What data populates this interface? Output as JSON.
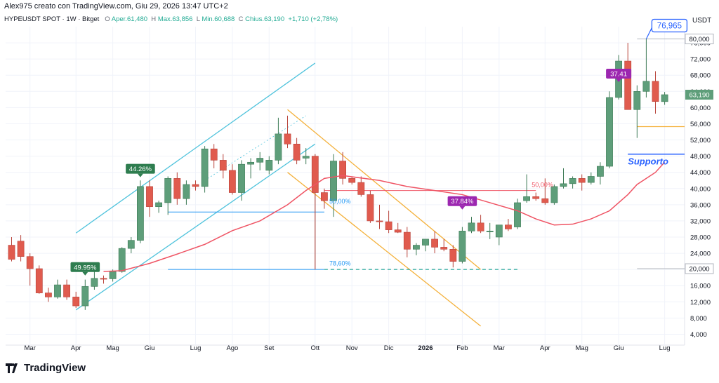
{
  "header": {
    "credit": "Alex975 creato con TradingView.com, Giu 29, 2026 13:47 UTC+2",
    "symbol": "HYPEUSDT SPOT · 1W · Bitget",
    "open_label": "O",
    "open": "Aper.61,480",
    "high_label": "H",
    "high": "Max.63,856",
    "low_label": "L",
    "low": "Min.60,688",
    "close_label": "C",
    "close": "Chius.63,190",
    "change": "+1,710 (+2,78%)",
    "currency": "USDT"
  },
  "brand": {
    "name": "TradingView"
  },
  "colors": {
    "up": "#5e9e7a",
    "down": "#e05b4e",
    "ma": "#ef5464",
    "channel_up": "#4fc3dc",
    "channel_down": "#f4b13b",
    "support": "#2962ff",
    "fib": "#2196f3",
    "purple": "#9c27b0",
    "green_badge": "#2e7d4f",
    "price_tag": "#5e9e7a",
    "grid": "#f0f3fa"
  },
  "chart_data": {
    "type": "candlestick",
    "interval": "1W",
    "ylim": [
      2000,
      80000
    ],
    "y_ticks": [
      4000,
      8000,
      12000,
      16000,
      20000,
      24000,
      28000,
      32000,
      36000,
      40000,
      44000,
      48000,
      52000,
      56000,
      60000,
      64000,
      68000,
      72000,
      76000
    ],
    "y_tick_labels": [
      "4,000",
      "8,000",
      "12,000",
      "16,000",
      "20,000",
      "24,000",
      "28,000",
      "32,000",
      "36,000",
      "40,000",
      "44,000",
      "48,000",
      "52,000",
      "56,000",
      "60,000",
      "64,000",
      "68,000",
      "72,000",
      "76,000"
    ],
    "x_ticks": [
      "Mar",
      "Apr",
      "Mag",
      "Giu",
      "Lug",
      "Ago",
      "Set",
      "Ott",
      "Nov",
      "Dic",
      "2026",
      "Feb",
      "Mar",
      "Apr",
      "Mag",
      "Giu",
      "Lug"
    ],
    "candles": [
      {
        "o": 26000,
        "h": 28000,
        "l": 22000,
        "c": 22500
      },
      {
        "o": 27000,
        "h": 28500,
        "l": 22000,
        "c": 23200
      },
      {
        "o": 23200,
        "h": 24000,
        "l": 16000,
        "c": 20200
      },
      {
        "o": 20200,
        "h": 21000,
        "l": 14000,
        "c": 14200
      },
      {
        "o": 14200,
        "h": 15500,
        "l": 12000,
        "c": 13200
      },
      {
        "o": 13200,
        "h": 17500,
        "l": 12800,
        "c": 16200
      },
      {
        "o": 16200,
        "h": 17500,
        "l": 12500,
        "c": 13200
      },
      {
        "o": 13200,
        "h": 14500,
        "l": 10500,
        "c": 11000
      },
      {
        "o": 11000,
        "h": 17500,
        "l": 10000,
        "c": 15800
      },
      {
        "o": 15800,
        "h": 19500,
        "l": 15000,
        "c": 17800
      },
      {
        "o": 17800,
        "h": 18500,
        "l": 16500,
        "c": 17700
      },
      {
        "o": 17700,
        "h": 20000,
        "l": 17000,
        "c": 19500
      },
      {
        "o": 19500,
        "h": 25500,
        "l": 19200,
        "c": 25200
      },
      {
        "o": 25200,
        "h": 28000,
        "l": 24000,
        "c": 27200
      },
      {
        "o": 27200,
        "h": 42000,
        "l": 26500,
        "c": 40500
      },
      {
        "o": 40500,
        "h": 42000,
        "l": 33000,
        "c": 35500
      },
      {
        "o": 35500,
        "h": 37000,
        "l": 34000,
        "c": 36500
      },
      {
        "o": 36500,
        "h": 43000,
        "l": 33500,
        "c": 42500
      },
      {
        "o": 42500,
        "h": 44000,
        "l": 36000,
        "c": 37500
      },
      {
        "o": 37500,
        "h": 42000,
        "l": 36000,
        "c": 41000
      },
      {
        "o": 41000,
        "h": 42000,
        "l": 39500,
        "c": 40500
      },
      {
        "o": 40500,
        "h": 50500,
        "l": 39000,
        "c": 49800
      },
      {
        "o": 49800,
        "h": 51000,
        "l": 45000,
        "c": 47000
      },
      {
        "o": 47000,
        "h": 48500,
        "l": 42500,
        "c": 44500
      },
      {
        "o": 44500,
        "h": 46000,
        "l": 38500,
        "c": 39000
      },
      {
        "o": 39000,
        "h": 47000,
        "l": 37000,
        "c": 46000
      },
      {
        "o": 46000,
        "h": 47500,
        "l": 42500,
        "c": 46500
      },
      {
        "o": 46500,
        "h": 49000,
        "l": 44500,
        "c": 47500
      },
      {
        "o": 44500,
        "h": 48000,
        "l": 43500,
        "c": 47000
      },
      {
        "o": 47000,
        "h": 57500,
        "l": 46000,
        "c": 53500
      },
      {
        "o": 53500,
        "h": 58000,
        "l": 50000,
        "c": 51000
      },
      {
        "o": 51000,
        "h": 52500,
        "l": 46000,
        "c": 47000
      },
      {
        "o": 47500,
        "h": 50000,
        "l": 46000,
        "c": 48000
      },
      {
        "o": 48000,
        "h": 48500,
        "l": 20000,
        "c": 39000
      },
      {
        "o": 39000,
        "h": 40000,
        "l": 35000,
        "c": 37000
      },
      {
        "o": 37000,
        "h": 48500,
        "l": 33000,
        "c": 46800
      },
      {
        "o": 46800,
        "h": 49000,
        "l": 41000,
        "c": 42500
      },
      {
        "o": 42500,
        "h": 43000,
        "l": 41000,
        "c": 41500
      },
      {
        "o": 41500,
        "h": 43000,
        "l": 38000,
        "c": 38500
      },
      {
        "o": 38500,
        "h": 39500,
        "l": 31500,
        "c": 32000
      },
      {
        "o": 32000,
        "h": 36000,
        "l": 30000,
        "c": 31800
      },
      {
        "o": 31800,
        "h": 34500,
        "l": 29000,
        "c": 29800
      },
      {
        "o": 29800,
        "h": 31500,
        "l": 29000,
        "c": 29200
      },
      {
        "o": 29200,
        "h": 30500,
        "l": 23000,
        "c": 25000
      },
      {
        "o": 25000,
        "h": 26500,
        "l": 23500,
        "c": 26000
      },
      {
        "o": 26000,
        "h": 27500,
        "l": 24500,
        "c": 27500
      },
      {
        "o": 27500,
        "h": 29500,
        "l": 24000,
        "c": 25500
      },
      {
        "o": 25500,
        "h": 27500,
        "l": 24500,
        "c": 25000
      },
      {
        "o": 25000,
        "h": 26000,
        "l": 20500,
        "c": 22000
      },
      {
        "o": 22000,
        "h": 30500,
        "l": 21500,
        "c": 29500
      },
      {
        "o": 29500,
        "h": 33000,
        "l": 29000,
        "c": 31500
      },
      {
        "o": 31500,
        "h": 33500,
        "l": 29000,
        "c": 29500
      },
      {
        "o": 29500,
        "h": 31500,
        "l": 27500,
        "c": 29500
      },
      {
        "o": 28000,
        "h": 30500,
        "l": 26000,
        "c": 31000
      },
      {
        "o": 31000,
        "h": 32500,
        "l": 29500,
        "c": 30000
      },
      {
        "o": 30500,
        "h": 37500,
        "l": 30000,
        "c": 36500
      },
      {
        "o": 37000,
        "h": 43500,
        "l": 36500,
        "c": 38000
      },
      {
        "o": 38000,
        "h": 39000,
        "l": 37000,
        "c": 37500
      },
      {
        "o": 37500,
        "h": 42500,
        "l": 36000,
        "c": 36500
      },
      {
        "o": 36500,
        "h": 41000,
        "l": 36000,
        "c": 40500
      },
      {
        "o": 40500,
        "h": 45000,
        "l": 40000,
        "c": 41200
      },
      {
        "o": 41200,
        "h": 43000,
        "l": 40000,
        "c": 42500
      },
      {
        "o": 42500,
        "h": 43500,
        "l": 39500,
        "c": 41500
      },
      {
        "o": 41500,
        "h": 44000,
        "l": 41000,
        "c": 43000
      },
      {
        "o": 43000,
        "h": 46500,
        "l": 41000,
        "c": 45500
      },
      {
        "o": 45500,
        "h": 64000,
        "l": 45000,
        "c": 62500
      },
      {
        "o": 62500,
        "h": 73000,
        "l": 62000,
        "c": 71500
      },
      {
        "o": 71500,
        "h": 76000,
        "l": 59500,
        "c": 59500
      },
      {
        "o": 59500,
        "h": 65500,
        "l": 52500,
        "c": 64000
      },
      {
        "o": 64000,
        "h": 76965,
        "l": 62500,
        "c": 66500
      },
      {
        "o": 66500,
        "h": 69000,
        "l": 58500,
        "c": 61500
      },
      {
        "o": 61480,
        "h": 63856,
        "l": 60688,
        "c": 63190
      }
    ],
    "moving_average": [
      {
        "i": 8,
        "v": null
      },
      {
        "i": 10,
        "v": 19500
      },
      {
        "i": 12,
        "v": 19700
      },
      {
        "i": 15,
        "v": 21500
      },
      {
        "i": 18,
        "v": 23800
      },
      {
        "i": 21,
        "v": 26200
      },
      {
        "i": 24,
        "v": 29600
      },
      {
        "i": 27,
        "v": 32000
      },
      {
        "i": 30,
        "v": 36000
      },
      {
        "i": 32,
        "v": 39500
      },
      {
        "i": 34,
        "v": 42500
      },
      {
        "i": 36,
        "v": 43200
      },
      {
        "i": 40,
        "v": 42000
      },
      {
        "i": 43,
        "v": 40500
      },
      {
        "i": 46,
        "v": 39500
      },
      {
        "i": 49,
        "v": 38500
      },
      {
        "i": 52,
        "v": 36500
      },
      {
        "i": 55,
        "v": 34500
      },
      {
        "i": 57,
        "v": 32500
      },
      {
        "i": 59,
        "v": 31000
      },
      {
        "i": 61,
        "v": 31200
      },
      {
        "i": 63,
        "v": 32500
      },
      {
        "i": 65,
        "v": 34500
      },
      {
        "i": 67,
        "v": 38500
      },
      {
        "i": 68,
        "v": 41000
      },
      {
        "i": 70,
        "v": 44000
      },
      {
        "i": 71,
        "v": 46500
      }
    ],
    "annotations": {
      "green_badges": [
        {
          "label": "49.95%",
          "i": 8,
          "price": 19200
        },
        {
          "label": "44.26%",
          "i": 14,
          "price": 43500
        }
      ],
      "purple_badges": [
        {
          "label": "37.84%",
          "i": 49,
          "price": 35500
        },
        {
          "label": "37.41",
          "i": 66,
          "price": 67000
        }
      ],
      "fib_labels": [
        {
          "label": "50,00%",
          "i": 35,
          "price": 36300,
          "color": "#2196f3"
        },
        {
          "label": "78,60%",
          "i": 35,
          "price": 21000,
          "color": "#2196f3"
        },
        {
          "label": "50,00%",
          "i": 57,
          "price": 40400,
          "color": "#ef5464"
        }
      ],
      "high_label": "76,965",
      "support_label": "Supporto",
      "last_price_label": "63,190",
      "level_labels": [
        "80,000",
        "20,000"
      ]
    }
  }
}
